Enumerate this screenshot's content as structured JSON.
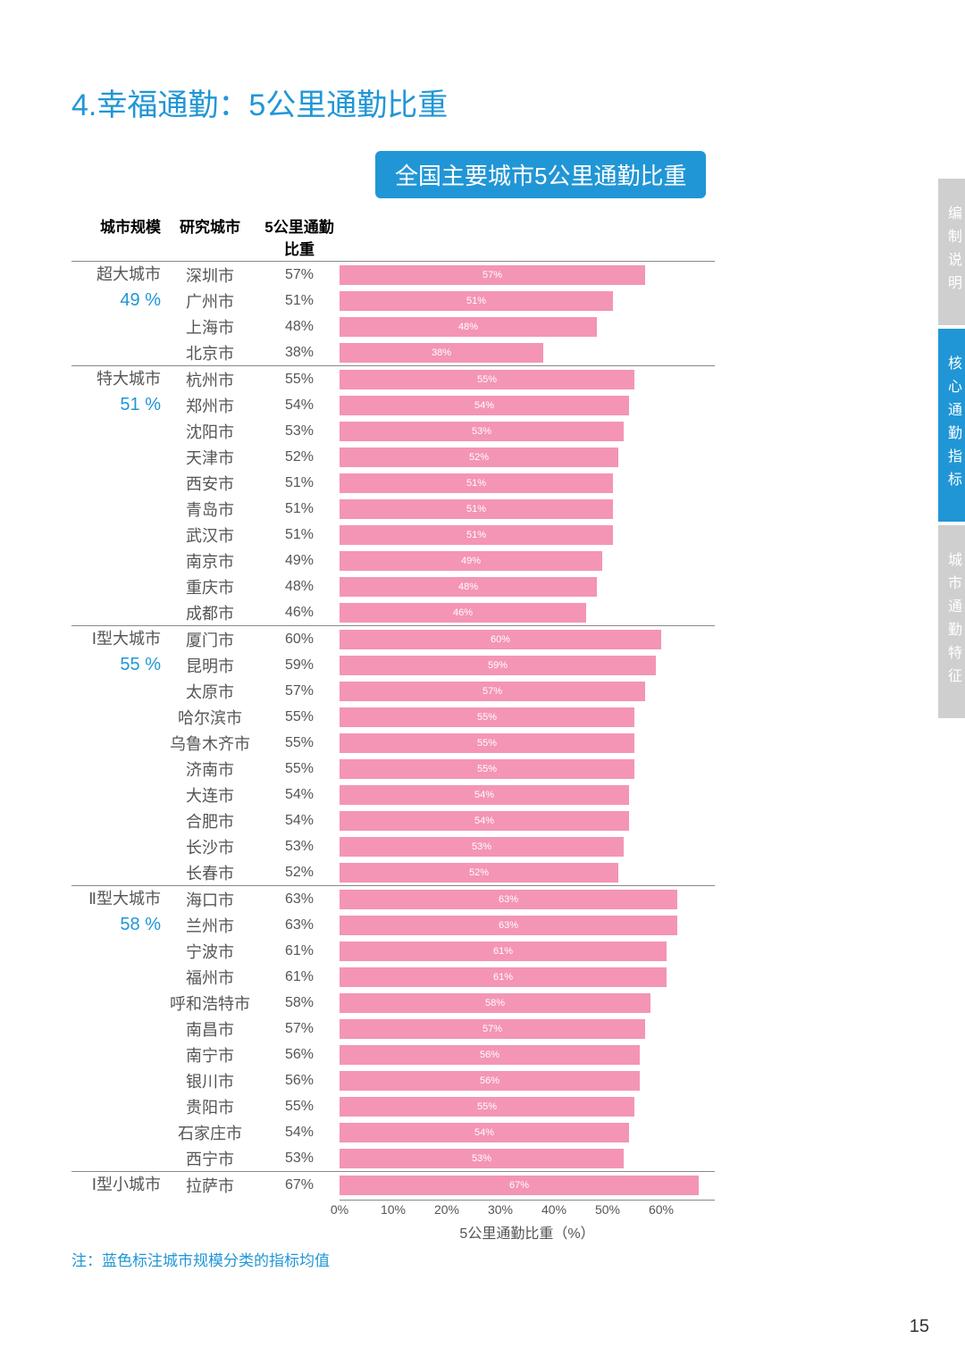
{
  "title": "4.幸福通勤：5公里通勤比重",
  "subtitle": "全国主要城市5公里通勤比重",
  "columns": {
    "scale": "城市规模",
    "city": "研究城市",
    "value": "5公里通勤比重"
  },
  "bar_color": "#f495b5",
  "bar_label_color": "#ffffff",
  "accent_color": "#2196d6",
  "xaxis": {
    "min": 0,
    "max": 70,
    "ticks": [
      0,
      10,
      20,
      30,
      40,
      50,
      60
    ],
    "tick_labels": [
      "0%",
      "10%",
      "20%",
      "30%",
      "40%",
      "50%",
      "60%"
    ],
    "title": "5公里通勤比重（%）"
  },
  "groups": [
    {
      "name": "超大城市",
      "avg": "49 %",
      "rows": [
        {
          "city": "深圳市",
          "v": 57
        },
        {
          "city": "广州市",
          "v": 51
        },
        {
          "city": "上海市",
          "v": 48
        },
        {
          "city": "北京市",
          "v": 38
        }
      ]
    },
    {
      "name": "特大城市",
      "avg": "51 %",
      "rows": [
        {
          "city": "杭州市",
          "v": 55
        },
        {
          "city": "郑州市",
          "v": 54
        },
        {
          "city": "沈阳市",
          "v": 53
        },
        {
          "city": "天津市",
          "v": 52
        },
        {
          "city": "西安市",
          "v": 51
        },
        {
          "city": "青岛市",
          "v": 51
        },
        {
          "city": "武汉市",
          "v": 51
        },
        {
          "city": "南京市",
          "v": 49
        },
        {
          "city": "重庆市",
          "v": 48
        },
        {
          "city": "成都市",
          "v": 46
        }
      ]
    },
    {
      "name": "Ⅰ型大城市",
      "avg": "55 %",
      "rows": [
        {
          "city": "厦门市",
          "v": 60
        },
        {
          "city": "昆明市",
          "v": 59
        },
        {
          "city": "太原市",
          "v": 57
        },
        {
          "city": "哈尔滨市",
          "v": 55
        },
        {
          "city": "乌鲁木齐市",
          "v": 55
        },
        {
          "city": "济南市",
          "v": 55
        },
        {
          "city": "大连市",
          "v": 54
        },
        {
          "city": "合肥市",
          "v": 54
        },
        {
          "city": "长沙市",
          "v": 53
        },
        {
          "city": "长春市",
          "v": 52
        }
      ]
    },
    {
      "name": "Ⅱ型大城市",
      "avg": "58 %",
      "rows": [
        {
          "city": "海口市",
          "v": 63
        },
        {
          "city": "兰州市",
          "v": 63
        },
        {
          "city": "宁波市",
          "v": 61
        },
        {
          "city": "福州市",
          "v": 61
        },
        {
          "city": "呼和浩特市",
          "v": 58
        },
        {
          "city": "南昌市",
          "v": 57
        },
        {
          "city": "南宁市",
          "v": 56
        },
        {
          "city": "银川市",
          "v": 56
        },
        {
          "city": "贵阳市",
          "v": 55
        },
        {
          "city": "石家庄市",
          "v": 54
        },
        {
          "city": "西宁市",
          "v": 53
        }
      ]
    },
    {
      "name": "Ⅰ型小城市",
      "avg": "",
      "rows": [
        {
          "city": "拉萨市",
          "v": 67
        }
      ]
    }
  ],
  "footnote": "注：蓝色标注城市规模分类的指标均值",
  "side_tabs": [
    {
      "label": "编制说明",
      "style": "gray"
    },
    {
      "label": "核心通勤指标",
      "style": "blue"
    },
    {
      "label": "城市通勤特征",
      "style": "gray"
    }
  ],
  "page_number": "15"
}
